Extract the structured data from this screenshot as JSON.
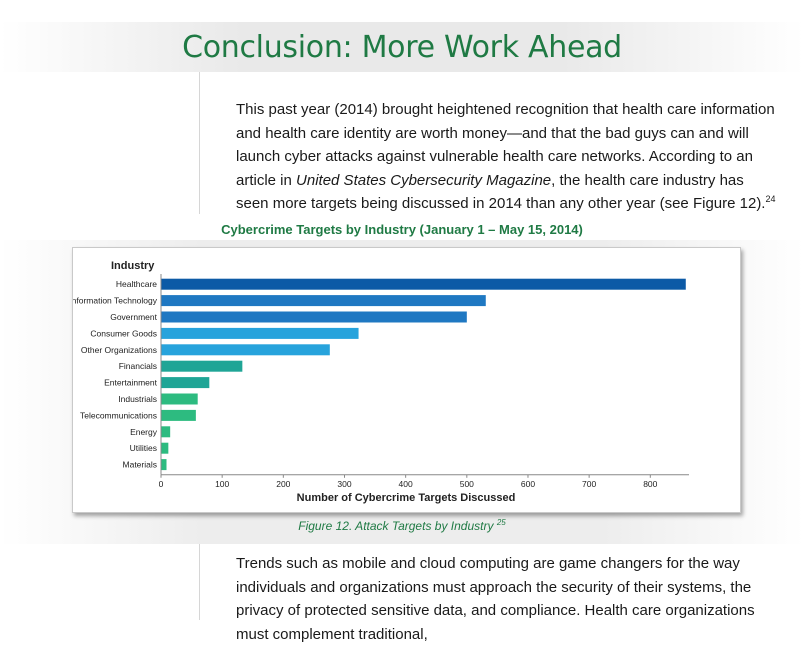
{
  "page": {
    "title": "Conclusion: More Work Ahead",
    "intro": {
      "part1": "This past year (2014) brought heightened recognition that health care information and health care identity are worth money—and that the bad guys can and will launch cyber attacks against vulnerable health care networks. According to an article in ",
      "italic": "United States Cybersecurity Magazine",
      "part2": ", the health care industry has seen more targets being discussed in 2014 than any other year (see Figure 12).",
      "footnote": "24"
    },
    "caption": {
      "text": "Figure 12. Attack Targets by Industry",
      "footnote": "25"
    },
    "closing": "Trends such as mobile and cloud computing are game changers for the way individuals and organizations must approach the security of their systems, the privacy of protected sensitive data, and compliance. Health care organizations must complement traditional,"
  },
  "chart_data": {
    "type": "bar",
    "orientation": "horizontal",
    "title": "Cybercrime Targets by Industry (January 1 – May 15, 2014)",
    "ylabel": "Industry",
    "xlabel": "Number of Cybercrime Targets Discussed",
    "categories": [
      "Healthcare",
      "Information Technology",
      "Government",
      "Consumer Goods",
      "Other Organizations",
      "Financials",
      "Entertainment",
      "Industrials",
      "Telecommunications",
      "Energy",
      "Utilities",
      "Materials"
    ],
    "values": [
      858,
      531,
      500,
      323,
      276,
      133,
      79,
      60,
      57,
      15,
      12,
      9
    ],
    "colors": [
      "#0c5aa6",
      "#1f78c2",
      "#1f78c2",
      "#27a3dc",
      "#27a3dc",
      "#1fa596",
      "#1fa596",
      "#2dbb80",
      "#2dbb80",
      "#2dbb80",
      "#2dbb80",
      "#2dbb80"
    ],
    "xlim": [
      0,
      860
    ],
    "xticks": [
      0,
      100,
      200,
      300,
      400,
      500,
      600,
      700,
      800
    ],
    "grid": false,
    "legend": "none"
  }
}
